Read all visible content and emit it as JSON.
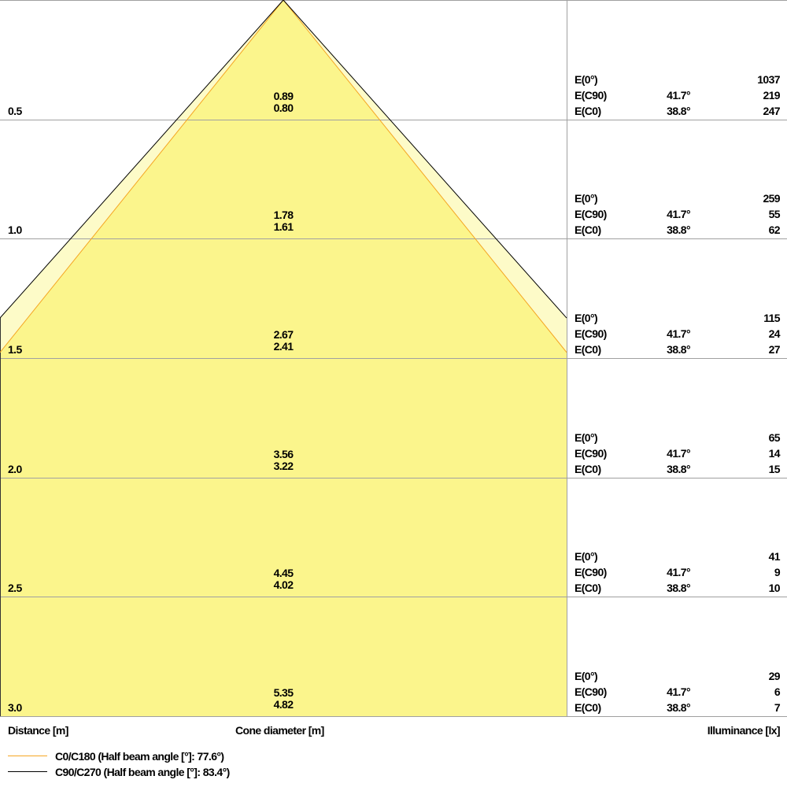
{
  "colors": {
    "fill": "#fbf58c",
    "fill_light": "#fdfbc8",
    "c0_line": "#f5a623",
    "c90_line": "#000000",
    "grid": "#a0a0a0"
  },
  "rows": [
    {
      "distance": "0.5",
      "cone_c90": "0.89",
      "cone_c0": "0.80",
      "e0_label": "E(0°)",
      "e0": "1037",
      "ec90_label": "E(C90)",
      "ec90_angle": "41.7°",
      "ec90": "219",
      "ec0_label": "E(C0)",
      "ec0_angle": "38.8°",
      "ec0": "247"
    },
    {
      "distance": "1.0",
      "cone_c90": "1.78",
      "cone_c0": "1.61",
      "e0_label": "E(0°)",
      "e0": "259",
      "ec90_label": "E(C90)",
      "ec90_angle": "41.7°",
      "ec90": "55",
      "ec0_label": "E(C0)",
      "ec0_angle": "38.8°",
      "ec0": "62"
    },
    {
      "distance": "1.5",
      "cone_c90": "2.67",
      "cone_c0": "2.41",
      "e0_label": "E(0°)",
      "e0": "115",
      "ec90_label": "E(C90)",
      "ec90_angle": "41.7°",
      "ec90": "24",
      "ec0_label": "E(C0)",
      "ec0_angle": "38.8°",
      "ec0": "27"
    },
    {
      "distance": "2.0",
      "cone_c90": "3.56",
      "cone_c0": "3.22",
      "e0_label": "E(0°)",
      "e0": "65",
      "ec90_label": "E(C90)",
      "ec90_angle": "41.7°",
      "ec90": "14",
      "ec0_label": "E(C0)",
      "ec0_angle": "38.8°",
      "ec0": "15"
    },
    {
      "distance": "2.5",
      "cone_c90": "4.45",
      "cone_c0": "4.02",
      "e0_label": "E(0°)",
      "e0": "41",
      "ec90_label": "E(C90)",
      "ec90_angle": "41.7°",
      "ec90": "9",
      "ec0_label": "E(C0)",
      "ec0_angle": "38.8°",
      "ec0": "10"
    },
    {
      "distance": "3.0",
      "cone_c90": "5.35",
      "cone_c0": "4.82",
      "e0_label": "E(0°)",
      "e0": "29",
      "ec90_label": "E(C90)",
      "ec90_angle": "41.7°",
      "ec90": "6",
      "ec0_label": "E(C0)",
      "ec0_angle": "38.8°",
      "ec0": "7"
    }
  ],
  "axis_labels": {
    "distance": "Distance [m]",
    "cone": "Cone diameter [m]",
    "illuminance": "Illuminance [lx]"
  },
  "legend": [
    {
      "label": "C0/C180 (Half beam angle [°]: 77.6°)",
      "half_angle_deg": 38.8
    },
    {
      "label": "C90/C270 (Half beam angle [°]: 83.4°)",
      "half_angle_deg": 41.7
    }
  ]
}
